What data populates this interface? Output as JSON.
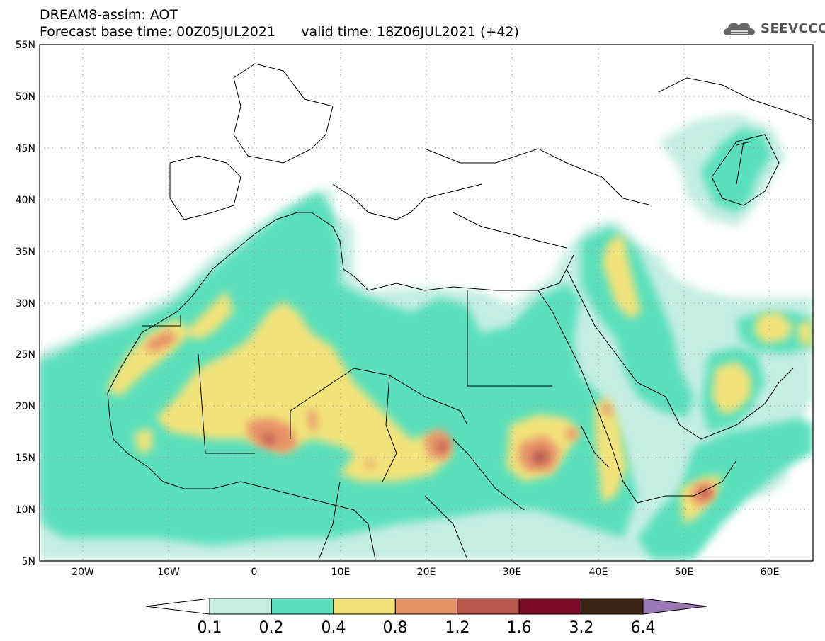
{
  "header": {
    "line1": "DREAM8-assim: AOT",
    "line2_left": "Forecast base time: 00Z05JUL2021",
    "line2_right": "valid time: 18Z06JUL2021 (+42)"
  },
  "logo": {
    "text": "SEEVCCC",
    "icon": "cloud-icon"
  },
  "map": {
    "lon_min": -25,
    "lon_max": 65,
    "lat_min": 5,
    "lat_max": 55,
    "lat_labels": [
      "55N",
      "50N",
      "45N",
      "40N",
      "35N",
      "30N",
      "25N",
      "20N",
      "15N",
      "10N",
      "5N"
    ],
    "lon_labels": [
      "20W",
      "10W",
      "0",
      "10E",
      "20E",
      "30E",
      "40E",
      "50E",
      "60E"
    ],
    "grid": "dotted",
    "colors": {
      "0.1": "#c6eee3",
      "0.2": "#5ce0bb",
      "0.4": "#f2e27a",
      "0.8": "#e8926a",
      "1.2": "#b9574c",
      "1.6": "#7c0d2a",
      "3.2": "#3b2414",
      "6.4": "#9b78b6"
    }
  },
  "colorbar": {
    "labels": [
      "0.1",
      "0.2",
      "0.4",
      "0.8",
      "1.2",
      "1.6",
      "3.2",
      "6.4"
    ],
    "colors": [
      "#c6eee3",
      "#5ce0bb",
      "#f2e27a",
      "#e8926a",
      "#b9574c",
      "#7c0d2a",
      "#3b2414",
      "#9b78b6"
    ]
  }
}
